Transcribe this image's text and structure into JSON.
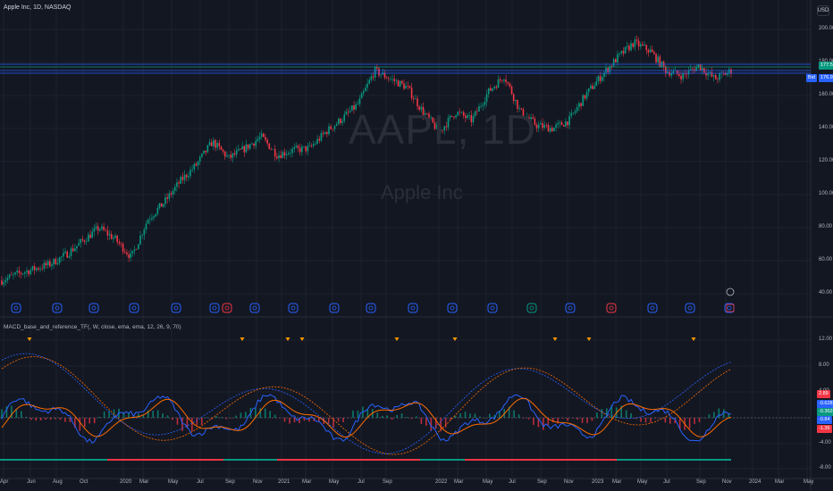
{
  "header": {
    "symbol_title": "Apple Inc, 1D, NASDAQ",
    "currency": "USD"
  },
  "watermark": {
    "ticker": "AAPL, 1D",
    "name": "Apple Inc"
  },
  "indicator": {
    "title": "MACD_base_and_reference_TF(, W, close, ema, ema, 12, 26, 9, 70)"
  },
  "price_axis": {
    "ticks": [
      "200.00",
      "180.00",
      "160.00",
      "140.00",
      "120.00",
      "100.00",
      "80.00",
      "60.00",
      "40.00"
    ],
    "tag_green": "177.57",
    "tag_blue_prefix": "Bid",
    "tag_blue": "176.92"
  },
  "macd_axis": {
    "ticks": [
      "12.00",
      "8.00",
      "4.00",
      "0.00",
      "-4.00",
      "-8.00"
    ],
    "tags": [
      {
        "text": "2.89",
        "color": "#f23645"
      },
      {
        "text": "-0.6283",
        "color": "#2962ff"
      },
      {
        "text": "-0.3620",
        "color": "#089981"
      },
      {
        "text": "-0.84",
        "color": "#2962ff"
      },
      {
        "text": "-1.36",
        "color": "#f23645"
      }
    ]
  },
  "time_axis": [
    "Apr",
    "Jun",
    "Aug",
    "Oct",
    "2020",
    "Mar",
    "May",
    "Jul",
    "Sep",
    "Nov",
    "2021",
    "Mar",
    "May",
    "Jul",
    "Sep",
    "2022",
    "Mar",
    "May",
    "Jul",
    "Sep",
    "Nov",
    "2023",
    "Mar",
    "May",
    "Jul",
    "Sep",
    "Nov",
    "2024",
    "Mar",
    "May"
  ],
  "colors": {
    "background": "#131722",
    "up": "#089981",
    "down": "#f23645",
    "macd": "#2962ff",
    "signal": "#ff6d00",
    "events": "#2962ff"
  },
  "events": {
    "icons": [
      "earnings-icon",
      "dividend-icon",
      "split-icon",
      "lightning-icon"
    ]
  },
  "chart_data": {
    "type": "line",
    "title": "Apple Inc, 1D, NASDAQ",
    "series": [
      {
        "values": [
          48,
          52,
          55,
          58,
          64,
          72,
          80,
          73,
          62,
          85,
          95,
          108,
          118,
          132,
          122,
          128,
          135,
          124,
          127,
          128,
          138,
          146,
          155,
          175,
          170,
          165,
          150,
          138,
          150,
          145,
          162,
          172,
          150,
          142,
          140,
          145,
          160,
          172,
          183,
          192,
          187,
          175,
          172,
          178,
          170,
          175
        ]
      }
    ],
    "ylim": [
      35,
      205
    ],
    "xlabel": "",
    "ylabel": ""
  }
}
